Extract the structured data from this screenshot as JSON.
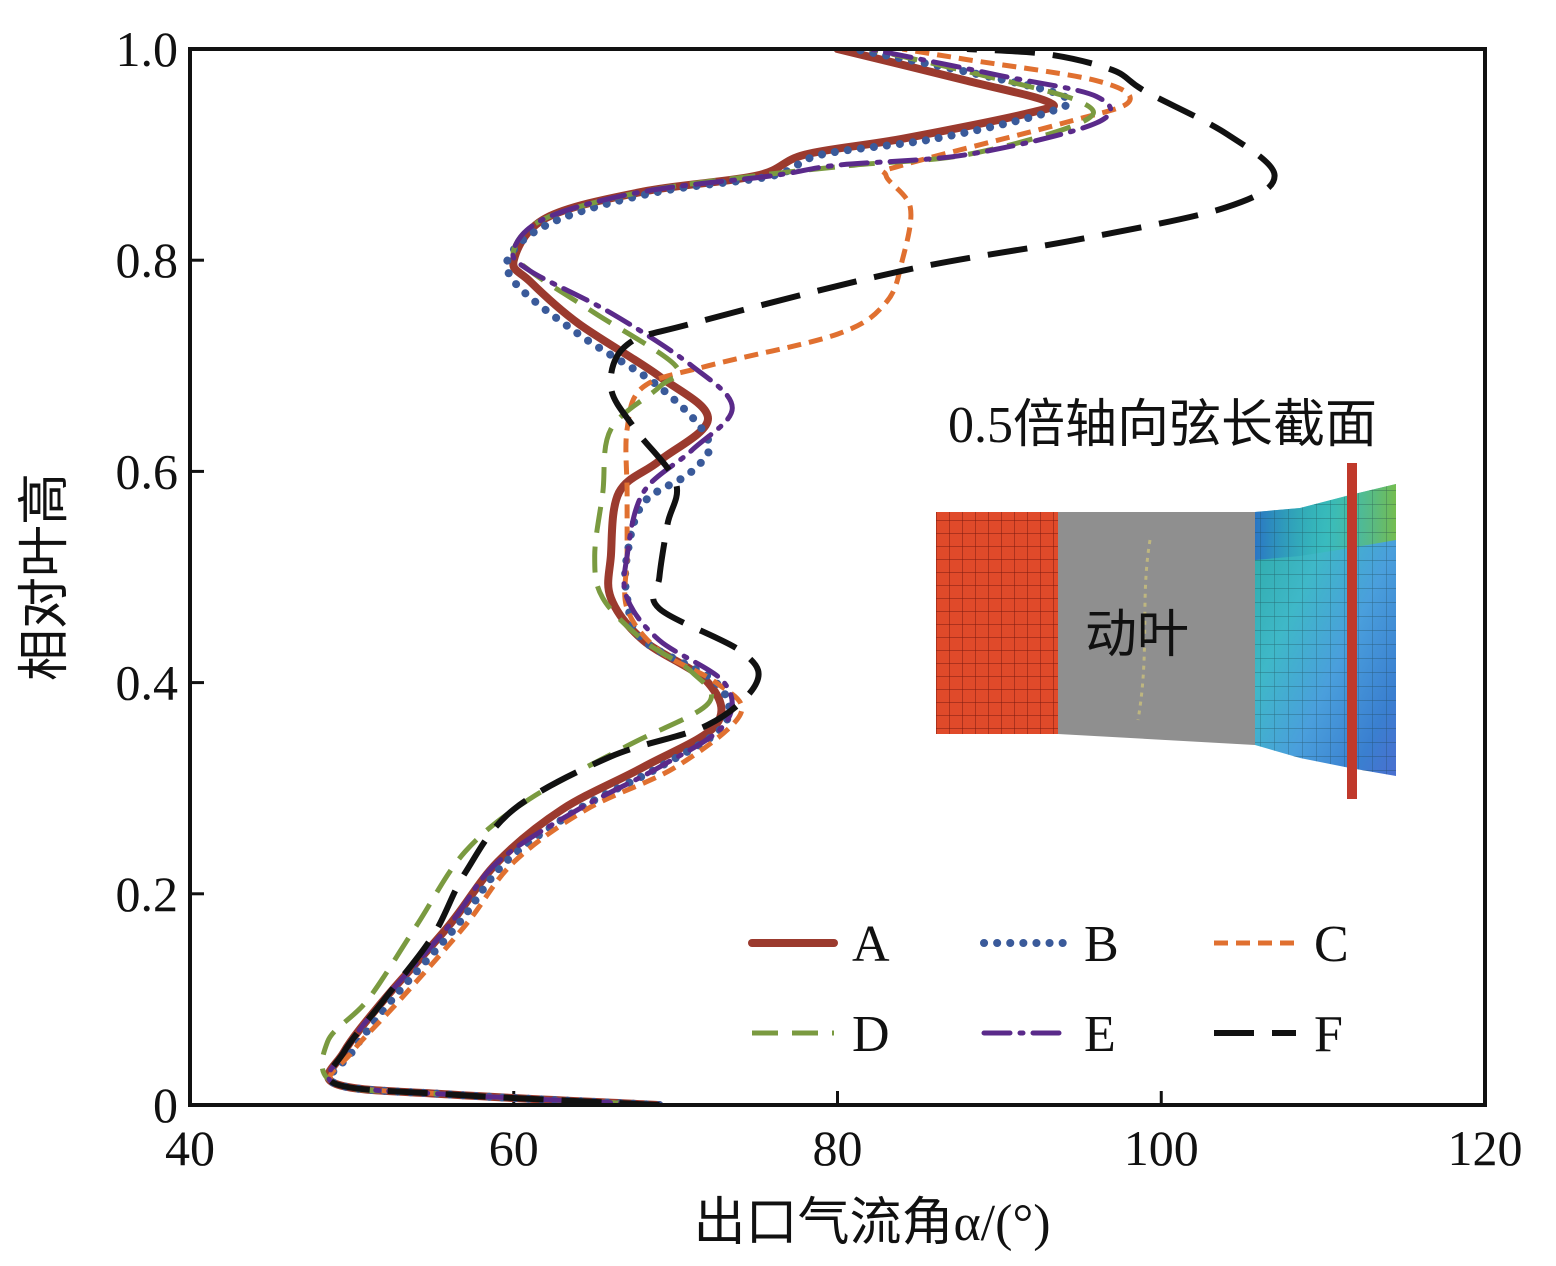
{
  "chart_data": {
    "type": "line",
    "title": "",
    "xlabel": "出口气流角α/(°)",
    "ylabel": "相对叶高",
    "xlim": [
      40,
      120
    ],
    "ylim": [
      0,
      1.0
    ],
    "xticks": [
      40,
      60,
      80,
      100,
      120
    ],
    "xtick_labels": [
      "40",
      "60",
      "80",
      "100",
      "120"
    ],
    "yticks": [
      0,
      0.2,
      0.4,
      0.6,
      0.8,
      1.0
    ],
    "ytick_labels": [
      "0",
      "0.2",
      "0.4",
      "0.6",
      "0.8",
      "1.0"
    ],
    "grid": false,
    "legend_position": "bottom-right",
    "annotation": {
      "title": "0.5倍轴向弦长截面",
      "label": "动叶"
    },
    "series": [
      {
        "name": "A",
        "color": "#9b3a2e",
        "dash": "solid",
        "points": [
          [
            69,
            0
          ],
          [
            56,
            0.01
          ],
          [
            49,
            0.02
          ],
          [
            49.5,
            0.05
          ],
          [
            52,
            0.1
          ],
          [
            56,
            0.17
          ],
          [
            59,
            0.23
          ],
          [
            63,
            0.28
          ],
          [
            68,
            0.32
          ],
          [
            72.5,
            0.36
          ],
          [
            72,
            0.4
          ],
          [
            68,
            0.44
          ],
          [
            66,
            0.48
          ],
          [
            66,
            0.52
          ],
          [
            66.5,
            0.58
          ],
          [
            69,
            0.61
          ],
          [
            72,
            0.65
          ],
          [
            69,
            0.69
          ],
          [
            64,
            0.74
          ],
          [
            61,
            0.78
          ],
          [
            60,
            0.8
          ],
          [
            62,
            0.84
          ],
          [
            68,
            0.865
          ],
          [
            75,
            0.88
          ],
          [
            78,
            0.9
          ],
          [
            84,
            0.915
          ],
          [
            92,
            0.94
          ],
          [
            93,
            0.95
          ],
          [
            88,
            0.97
          ],
          [
            80,
            1.0
          ]
        ]
      },
      {
        "name": "B",
        "color": "#3a5a9a",
        "dash": "dotted",
        "points": [
          [
            69,
            0
          ],
          [
            56,
            0.01
          ],
          [
            49,
            0.02
          ],
          [
            50,
            0.05
          ],
          [
            52.5,
            0.1
          ],
          [
            56.5,
            0.17
          ],
          [
            59.5,
            0.23
          ],
          [
            64,
            0.28
          ],
          [
            69,
            0.32
          ],
          [
            73,
            0.36
          ],
          [
            72.5,
            0.4
          ],
          [
            68,
            0.44
          ],
          [
            67,
            0.48
          ],
          [
            67,
            0.52
          ],
          [
            68,
            0.57
          ],
          [
            71,
            0.6
          ],
          [
            72,
            0.63
          ],
          [
            69,
            0.68
          ],
          [
            64,
            0.73
          ],
          [
            60,
            0.78
          ],
          [
            60,
            0.81
          ],
          [
            63,
            0.84
          ],
          [
            69,
            0.865
          ],
          [
            76,
            0.88
          ],
          [
            79,
            0.9
          ],
          [
            86,
            0.915
          ],
          [
            93,
            0.94
          ],
          [
            94,
            0.955
          ],
          [
            89,
            0.975
          ],
          [
            81,
            1.0
          ]
        ]
      },
      {
        "name": "C",
        "color": "#e07030",
        "dash": "short-dash",
        "points": [
          [
            69,
            0
          ],
          [
            56,
            0.01
          ],
          [
            49,
            0.02
          ],
          [
            50,
            0.05
          ],
          [
            53,
            0.1
          ],
          [
            57,
            0.17
          ],
          [
            60,
            0.23
          ],
          [
            64.5,
            0.28
          ],
          [
            70,
            0.32
          ],
          [
            74,
            0.37
          ],
          [
            72.5,
            0.4
          ],
          [
            69,
            0.43
          ],
          [
            67,
            0.47
          ],
          [
            67,
            0.52
          ],
          [
            67,
            0.58
          ],
          [
            67,
            0.64
          ],
          [
            68,
            0.68
          ],
          [
            72,
            0.7
          ],
          [
            80,
            0.73
          ],
          [
            83,
            0.76
          ],
          [
            84,
            0.8
          ],
          [
            84.5,
            0.85
          ],
          [
            83,
            0.88
          ],
          [
            84,
            0.89
          ],
          [
            94,
            0.93
          ],
          [
            98,
            0.95
          ],
          [
            96,
            0.97
          ],
          [
            88,
            0.99
          ],
          [
            84,
            1.0
          ]
        ]
      },
      {
        "name": "D",
        "color": "#7a9a40",
        "dash": "dash",
        "points": [
          [
            69,
            0
          ],
          [
            56,
            0.01
          ],
          [
            49,
            0.02
          ],
          [
            48.5,
            0.06
          ],
          [
            51,
            0.1
          ],
          [
            54,
            0.17
          ],
          [
            57,
            0.24
          ],
          [
            61,
            0.29
          ],
          [
            67,
            0.34
          ],
          [
            72,
            0.38
          ],
          [
            71,
            0.41
          ],
          [
            68,
            0.44
          ],
          [
            65.5,
            0.48
          ],
          [
            65,
            0.52
          ],
          [
            65.5,
            0.58
          ],
          [
            66,
            0.64
          ],
          [
            69,
            0.68
          ],
          [
            70,
            0.7
          ],
          [
            65,
            0.75
          ],
          [
            61,
            0.79
          ],
          [
            60,
            0.81
          ],
          [
            62,
            0.84
          ],
          [
            68,
            0.865
          ],
          [
            75,
            0.88
          ],
          [
            81,
            0.89
          ],
          [
            88,
            0.9
          ],
          [
            95,
            0.93
          ],
          [
            95,
            0.95
          ],
          [
            89,
            0.975
          ],
          [
            82,
            1.0
          ]
        ]
      },
      {
        "name": "E",
        "color": "#5a2a8a",
        "dash": "dash-dot",
        "points": [
          [
            69,
            0
          ],
          [
            56,
            0.01
          ],
          [
            49,
            0.02
          ],
          [
            49.5,
            0.05
          ],
          [
            52,
            0.1
          ],
          [
            56,
            0.17
          ],
          [
            59,
            0.23
          ],
          [
            64,
            0.28
          ],
          [
            69,
            0.32
          ],
          [
            73,
            0.36
          ],
          [
            73,
            0.4
          ],
          [
            69,
            0.44
          ],
          [
            67,
            0.48
          ],
          [
            67,
            0.52
          ],
          [
            68,
            0.58
          ],
          [
            71,
            0.62
          ],
          [
            73.5,
            0.66
          ],
          [
            71,
            0.7
          ],
          [
            66,
            0.75
          ],
          [
            61,
            0.79
          ],
          [
            60,
            0.81
          ],
          [
            62,
            0.84
          ],
          [
            68,
            0.865
          ],
          [
            76,
            0.88
          ],
          [
            80,
            0.89
          ],
          [
            88,
            0.9
          ],
          [
            96,
            0.93
          ],
          [
            96,
            0.955
          ],
          [
            90,
            0.975
          ],
          [
            82,
            1.0
          ]
        ]
      },
      {
        "name": "F",
        "color": "#111111",
        "dash": "long-dash",
        "points": [
          [
            69,
            0
          ],
          [
            56,
            0.01
          ],
          [
            49,
            0.02
          ],
          [
            49.5,
            0.05
          ],
          [
            52,
            0.1
          ],
          [
            55,
            0.16
          ],
          [
            57,
            0.22
          ],
          [
            60,
            0.28
          ],
          [
            66,
            0.33
          ],
          [
            72,
            0.36
          ],
          [
            75,
            0.4
          ],
          [
            74,
            0.43
          ],
          [
            69,
            0.47
          ],
          [
            69,
            0.5
          ],
          [
            69.5,
            0.55
          ],
          [
            70,
            0.59
          ],
          [
            67.5,
            0.64
          ],
          [
            66,
            0.68
          ],
          [
            67,
            0.72
          ],
          [
            71,
            0.74
          ],
          [
            84,
            0.79
          ],
          [
            95,
            0.82
          ],
          [
            104,
            0.85
          ],
          [
            107,
            0.88
          ],
          [
            104,
            0.92
          ],
          [
            99,
            0.96
          ],
          [
            97,
            0.98
          ],
          [
            93,
            0.995
          ],
          [
            88,
            1.0
          ]
        ]
      }
    ]
  },
  "inset": {
    "stator_color": "#e04a2a",
    "blade_color": "#8f8f8f",
    "section_line_color": "#c0392b"
  }
}
